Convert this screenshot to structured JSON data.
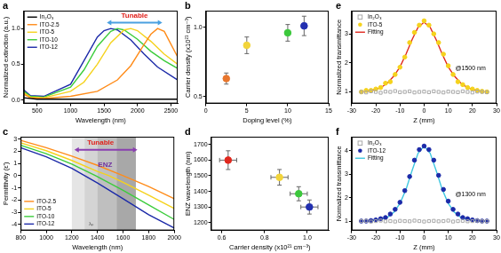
{
  "chart_data": [
    {
      "type": "line",
      "panel_label": "a",
      "x_label": "Wavelength (nm)",
      "y_label": "Normalized extinction (a.u.)",
      "xlim": [
        300,
        2600
      ],
      "xticks": [
        500,
        1000,
        1500,
        2000,
        2500
      ],
      "ylim": [
        -0.05,
        1.25
      ],
      "yticks": [
        {
          "value": 0,
          "label": "0.0"
        },
        0.5,
        {
          "value": 1,
          "label": "1.0"
        }
      ],
      "grid": false,
      "legend": "upper left",
      "annotations": [
        "Tunable"
      ],
      "series": [
        {
          "name": "In₂O₃",
          "color": "#000000",
          "line_style": "solid",
          "x": [
            300,
            500,
            1000,
            1500,
            2000,
            2600
          ],
          "values": [
            0.03,
            0.01,
            0.01,
            0.01,
            0.01,
            0.01
          ]
        },
        {
          "name": "ITO-2.5",
          "color": "#ff8c1a",
          "line_style": "solid",
          "x": [
            300,
            400,
            600,
            1000,
            1400,
            1700,
            1900,
            2100,
            2200,
            2300,
            2400,
            2500,
            2600
          ],
          "values": [
            0.08,
            0.03,
            0.02,
            0.05,
            0.12,
            0.28,
            0.48,
            0.78,
            0.92,
            1.0,
            0.96,
            0.78,
            0.6
          ]
        },
        {
          "name": "ITO-5",
          "color": "#f5d21c",
          "line_style": "solid",
          "x": [
            300,
            400,
            600,
            1000,
            1200,
            1400,
            1600,
            1800,
            1900,
            2000,
            2200,
            2400,
            2600
          ],
          "values": [
            0.1,
            0.04,
            0.03,
            0.12,
            0.25,
            0.5,
            0.8,
            0.98,
            1.0,
            0.97,
            0.82,
            0.64,
            0.5
          ]
        },
        {
          "name": "ITO-10",
          "color": "#3ccc3c",
          "line_style": "solid",
          "x": [
            300,
            400,
            600,
            1000,
            1200,
            1400,
            1600,
            1700,
            1800,
            2000,
            2200,
            2400,
            2600
          ],
          "values": [
            0.12,
            0.05,
            0.04,
            0.18,
            0.42,
            0.75,
            0.96,
            1.0,
            0.98,
            0.85,
            0.68,
            0.55,
            0.44
          ]
        },
        {
          "name": "ITO-12",
          "color": "#1c2aa8",
          "line_style": "solid",
          "x": [
            300,
            400,
            600,
            1000,
            1200,
            1400,
            1500,
            1600,
            1700,
            1900,
            2100,
            2300,
            2600
          ],
          "values": [
            0.14,
            0.06,
            0.05,
            0.22,
            0.55,
            0.88,
            0.97,
            1.0,
            0.98,
            0.84,
            0.64,
            0.46,
            0.28
          ]
        }
      ]
    },
    {
      "type": "scatter",
      "panel_label": "b",
      "x_label": "Doping level (%)",
      "y_label": "Carrier density (x10²¹ cm⁻³)",
      "xlim": [
        0,
        15
      ],
      "xticks": [
        0,
        5,
        10,
        15
      ],
      "ylim": [
        0.45,
        1.12
      ],
      "yticks": [
        0.5,
        {
          "value": 1,
          "label": "1.0"
        }
      ],
      "grid": false,
      "series": [
        {
          "marker": "circle",
          "x": [
            2.5,
            5,
            10,
            12
          ],
          "values": [
            0.63,
            0.87,
            0.96,
            1.01
          ],
          "errors": [
            0.04,
            0.06,
            0.06,
            0.07
          ],
          "colors": [
            "#e8762d",
            "#f2d43a",
            "#3cc83c",
            "#2330b0"
          ]
        }
      ]
    },
    {
      "type": "line",
      "panel_label": "c",
      "x_label": "Wavelength (nm)",
      "y_label": "Permittivity (ε')",
      "xlim": [
        800,
        2000
      ],
      "xticks": [
        800,
        1000,
        1200,
        1400,
        1600,
        1800,
        2000
      ],
      "ylim": [
        -4.5,
        3.2
      ],
      "yticks": [
        -4,
        -3,
        -2,
        -1,
        0,
        1,
        2,
        3
      ],
      "grid": false,
      "legend": "lower left",
      "annotations": [
        "Tunable",
        "ENZ",
        "λₚ"
      ],
      "shaded_ranges": [
        [
          1200,
          1300
        ],
        [
          1300,
          1400
        ],
        [
          1400,
          1550
        ],
        [
          1550,
          1700
        ]
      ],
      "series": [
        {
          "name": "ITO-2.5",
          "color": "#ff8c1a",
          "line_style": "solid",
          "x": [
            800,
            1000,
            1200,
            1400,
            1600,
            1800,
            2000
          ],
          "values": [
            2.9,
            2.3,
            1.6,
            0.85,
            0.0,
            -0.9,
            -1.9
          ]
        },
        {
          "name": "ITO-5",
          "color": "#f5d21c",
          "line_style": "solid",
          "x": [
            800,
            1000,
            1200,
            1400,
            1490,
            1600,
            1800,
            2000
          ],
          "values": [
            2.7,
            2.05,
            1.25,
            0.35,
            0,
            -0.55,
            -1.6,
            -2.7
          ]
        },
        {
          "name": "ITO-10",
          "color": "#3ccc3c",
          "line_style": "solid",
          "x": [
            800,
            1000,
            1200,
            1385,
            1600,
            1800,
            2000
          ],
          "values": [
            2.5,
            1.8,
            0.95,
            0,
            -1.2,
            -2.4,
            -3.6
          ]
        },
        {
          "name": "ITO-12",
          "color": "#1c2aa8",
          "line_style": "solid",
          "x": [
            800,
            1000,
            1200,
            1300,
            1400,
            1600,
            1800,
            2000
          ],
          "values": [
            2.3,
            1.55,
            0.6,
            0,
            -0.6,
            -1.9,
            -3.2,
            -4.3
          ]
        }
      ]
    },
    {
      "type": "scatter",
      "panel_label": "d",
      "x_label": "Carrier density (x10²¹ cm⁻³)",
      "y_label": "ENZ wavelength (nm)",
      "xlim": [
        0.55,
        1.1
      ],
      "xticks": [
        0.6,
        0.8,
        {
          "value": 1,
          "label": "1.0"
        }
      ],
      "ylim": [
        1150,
        1750
      ],
      "yticks": [
        1200,
        1300,
        1400,
        1500,
        1600,
        1700
      ],
      "grid": false,
      "series": [
        {
          "marker": "circle",
          "x": [
            0.63,
            0.87,
            0.96,
            1.01
          ],
          "values": [
            1600,
            1490,
            1385,
            1300
          ],
          "errors": [
            60,
            50,
            45,
            45
          ],
          "x_errors": [
            0.04,
            0.04,
            0.04,
            0.04
          ],
          "colors": [
            "#e0281e",
            "#f2d43a",
            "#3cc83c",
            "#2330b0"
          ]
        }
      ]
    },
    {
      "type": "scatter",
      "panel_label": "e",
      "x_label": "Z (mm)",
      "y_label": "Normalized transmittance",
      "xlim": [
        -30,
        30
      ],
      "xticks": [
        -30,
        -20,
        -10,
        0,
        10,
        20,
        30
      ],
      "ylim": [
        0.6,
        3.8
      ],
      "yticks": [
        1,
        2,
        3
      ],
      "grid": false,
      "legend": "upper left",
      "annotations": [
        "@1500 nm"
      ],
      "series": [
        {
          "name": "In₂O₃",
          "color": "#a8a8a8",
          "marker": "square_open",
          "x": [
            -26,
            -24,
            -22,
            -20,
            -18,
            -16,
            -14,
            -12,
            -10,
            -8,
            -6,
            -4,
            -2,
            0,
            2,
            4,
            6,
            8,
            10,
            12,
            14,
            16,
            18,
            20,
            22,
            24,
            26
          ],
          "values": [
            1.0,
            0.98,
            1.02,
            1.0,
            0.97,
            1.01,
            1.0,
            1.03,
            0.99,
            1.0,
            1.02,
            0.98,
            1.0,
            1.01,
            0.99,
            1.02,
            1.0,
            0.98,
            1.01,
            1.0,
            0.99,
            1.02,
            1.0,
            0.98,
            1.01,
            1.0,
            0.99
          ]
        },
        {
          "name": "ITO-5",
          "color": "#f5d21c",
          "marker": "circle",
          "x": [
            -26,
            -24,
            -22,
            -20,
            -18,
            -16,
            -14,
            -12,
            -10,
            -8,
            -6,
            -4,
            -2,
            0,
            2,
            4,
            6,
            8,
            10,
            12,
            14,
            16,
            18,
            20,
            22,
            24,
            26
          ],
          "values": [
            1.0,
            1.05,
            1.05,
            1.1,
            1.15,
            1.3,
            1.35,
            1.6,
            1.85,
            2.2,
            2.7,
            3.05,
            3.3,
            3.45,
            3.3,
            3.0,
            2.7,
            2.3,
            1.9,
            1.6,
            1.35,
            1.25,
            1.15,
            1.1,
            1.05,
            1.02,
            1.0
          ]
        },
        {
          "name": "Fitting",
          "type": "line",
          "color": "#e0281e",
          "line_style": "solid",
          "x": [
            -25,
            -22.5,
            -20,
            -17.5,
            -15,
            -12.5,
            -10,
            -7.5,
            -5,
            -2.5,
            0,
            2.5,
            5,
            7.5,
            10,
            12.5,
            15,
            17.5,
            20,
            22.5,
            25
          ],
          "values": [
            1.0,
            1.04,
            1.08,
            1.17,
            1.32,
            1.55,
            1.86,
            2.3,
            2.8,
            3.23,
            3.4,
            3.23,
            2.8,
            2.3,
            1.86,
            1.55,
            1.32,
            1.17,
            1.08,
            1.04,
            1.0
          ]
        }
      ]
    },
    {
      "type": "scatter",
      "panel_label": "f",
      "x_label": "Z (mm)",
      "y_label": "Normalized transmittance",
      "xlim": [
        -30,
        30
      ],
      "xticks": [
        -30,
        -20,
        -10,
        0,
        10,
        20,
        30
      ],
      "ylim": [
        0.6,
        4.6
      ],
      "yticks": [
        1,
        2,
        3,
        4
      ],
      "grid": false,
      "legend": "upper left",
      "annotations": [
        "@1300 nm"
      ],
      "series": [
        {
          "name": "In₂O₃",
          "color": "#a8a8a8",
          "marker": "square_open",
          "x": [
            -26,
            -24,
            -22,
            -20,
            -18,
            -16,
            -14,
            -12,
            -10,
            -8,
            -6,
            -4,
            -2,
            0,
            2,
            4,
            6,
            8,
            10,
            12,
            14,
            16,
            18,
            20,
            22,
            24,
            26
          ],
          "values": [
            1.0,
            1.01,
            0.98,
            1.0,
            1.02,
            0.99,
            1.0,
            0.98,
            1.01,
            1.0,
            0.99,
            1.02,
            1.0,
            0.98,
            1.0,
            1.01,
            0.99,
            1.0,
            1.02,
            0.98,
            1.0,
            1.01,
            0.99,
            1.0,
            1.02,
            0.99,
            1.0
          ]
        },
        {
          "name": "ITO-12",
          "color": "#1c2aa8",
          "marker": "circle",
          "x": [
            -26,
            -24,
            -22,
            -20,
            -18,
            -16,
            -14,
            -12,
            -10,
            -8,
            -6,
            -4,
            -2,
            0,
            2,
            4,
            6,
            8,
            10,
            12,
            14,
            16,
            18,
            20,
            22,
            24,
            26
          ],
          "values": [
            1.0,
            1.0,
            1.02,
            1.05,
            1.1,
            1.15,
            1.3,
            1.5,
            1.8,
            2.3,
            2.9,
            3.6,
            4.05,
            4.2,
            4.05,
            3.6,
            2.95,
            2.35,
            1.85,
            1.5,
            1.3,
            1.15,
            1.1,
            1.05,
            1.02,
            1.0,
            1.0
          ]
        },
        {
          "name": "Fitting",
          "type": "line",
          "color": "#40c8e0",
          "line_style": "solid",
          "x": [
            -25,
            -22.5,
            -20,
            -17.5,
            -15,
            -12.5,
            -10,
            -7.5,
            -5,
            -2.5,
            0,
            2.5,
            5,
            7.5,
            10,
            12.5,
            15,
            17.5,
            20,
            22.5,
            25
          ],
          "values": [
            1.0,
            1.01,
            1.04,
            1.08,
            1.18,
            1.38,
            1.75,
            2.35,
            3.15,
            3.9,
            4.2,
            3.9,
            3.15,
            2.35,
            1.75,
            1.38,
            1.18,
            1.08,
            1.04,
            1.01,
            1.0
          ]
        }
      ]
    }
  ]
}
